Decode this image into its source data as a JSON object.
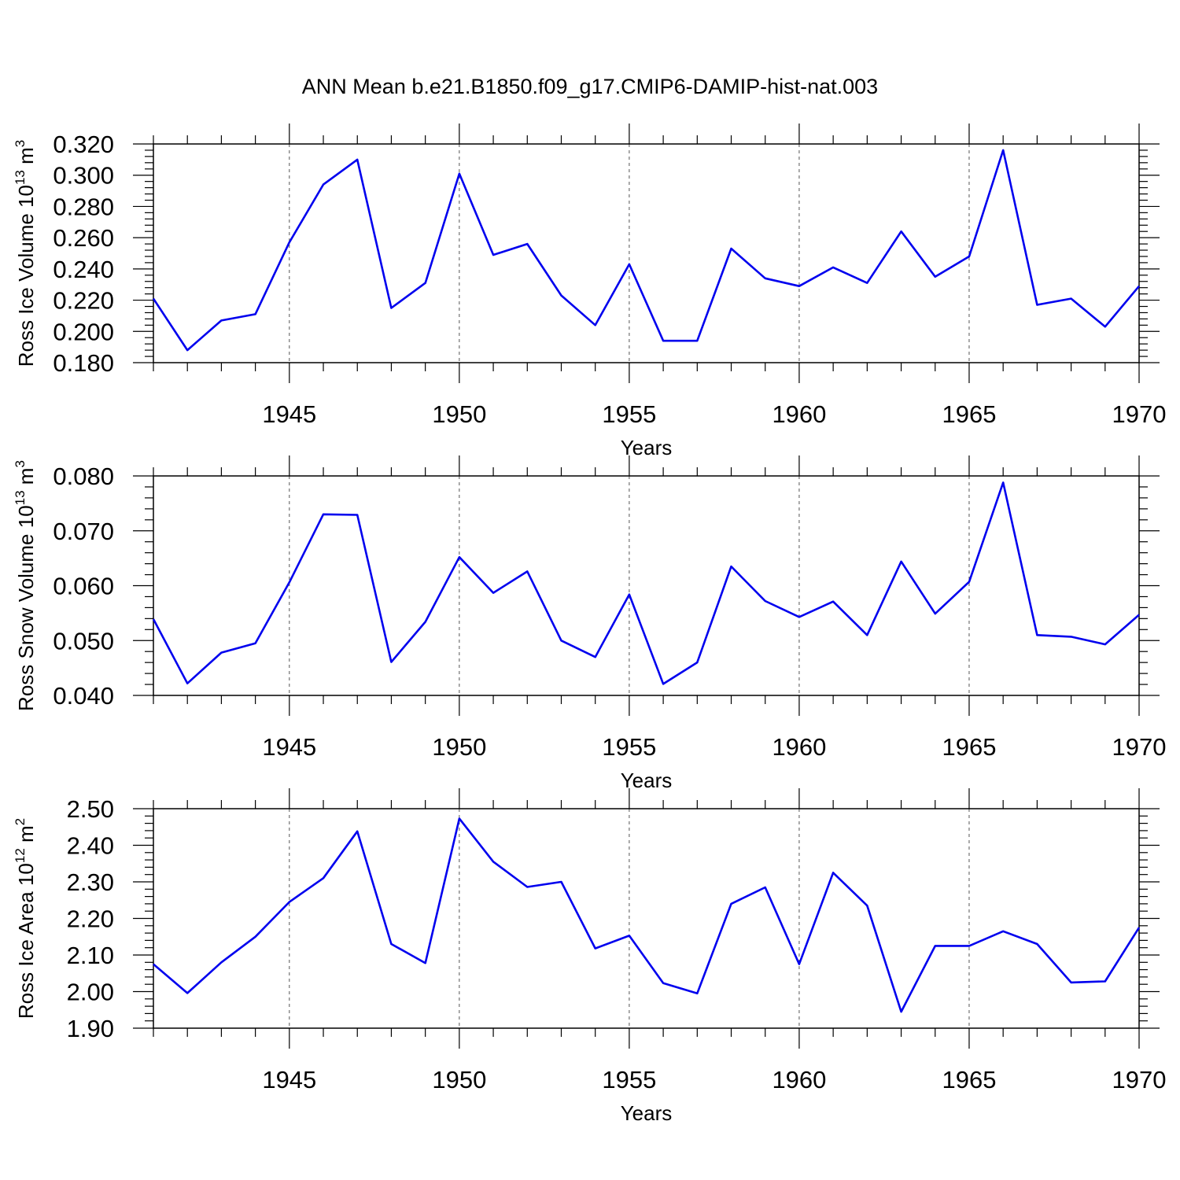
{
  "figure_title": "ANN Mean b.e21.B1850.f09_g17.CMIP6-DAMIP-hist-nat.003",
  "line_color": "#0000ee",
  "chart_data": [
    {
      "type": "line",
      "ylabel_main": "Ross Ice Volume 10",
      "ylabel_exp": "13",
      "ylabel_unit": " m",
      "ylabel_unit_exp": "3",
      "xlabel": "Years",
      "xlim": [
        1941,
        1970
      ],
      "ylim": [
        0.18,
        0.32
      ],
      "yticks": [
        0.18,
        0.2,
        0.22,
        0.24,
        0.26,
        0.28,
        0.3,
        0.32
      ],
      "ytick_labels": [
        "0.180",
        "0.200",
        "0.220",
        "0.240",
        "0.260",
        "0.280",
        "0.300",
        "0.320"
      ],
      "xticks": [
        1945,
        1950,
        1955,
        1960,
        1965,
        1970
      ],
      "xtick_labels": [
        "1945",
        "1950",
        "1955",
        "1960",
        "1965",
        "1970"
      ],
      "x": [
        1941,
        1942,
        1943,
        1944,
        1945,
        1946,
        1947,
        1948,
        1949,
        1950,
        1951,
        1952,
        1953,
        1954,
        1955,
        1956,
        1957,
        1958,
        1959,
        1960,
        1961,
        1962,
        1963,
        1964,
        1965,
        1966,
        1967,
        1968,
        1969,
        1970
      ],
      "y": [
        0.221,
        0.188,
        0.207,
        0.211,
        0.257,
        0.294,
        0.31,
        0.215,
        0.231,
        0.301,
        0.249,
        0.256,
        0.223,
        0.204,
        0.243,
        0.194,
        0.194,
        0.253,
        0.234,
        0.229,
        0.241,
        0.231,
        0.264,
        0.235,
        0.248,
        0.316,
        0.217,
        0.221,
        0.203,
        0.229
      ]
    },
    {
      "type": "line",
      "ylabel_main": "Ross Snow Volume 10",
      "ylabel_exp": "13",
      "ylabel_unit": " m",
      "ylabel_unit_exp": "3",
      "xlabel": "Years",
      "xlim": [
        1941,
        1970
      ],
      "ylim": [
        0.04,
        0.08
      ],
      "yticks": [
        0.04,
        0.05,
        0.06,
        0.07,
        0.08
      ],
      "ytick_labels": [
        "0.040",
        "0.050",
        "0.060",
        "0.070",
        "0.080"
      ],
      "xticks": [
        1945,
        1950,
        1955,
        1960,
        1965,
        1970
      ],
      "xtick_labels": [
        "1945",
        "1950",
        "1955",
        "1960",
        "1965",
        "1970"
      ],
      "x": [
        1941,
        1942,
        1943,
        1944,
        1945,
        1946,
        1947,
        1948,
        1949,
        1950,
        1951,
        1952,
        1953,
        1954,
        1955,
        1956,
        1957,
        1958,
        1959,
        1960,
        1961,
        1962,
        1963,
        1964,
        1965,
        1966,
        1967,
        1968,
        1969,
        1970
      ],
      "y": [
        0.0539,
        0.0422,
        0.0478,
        0.0495,
        0.0606,
        0.073,
        0.0729,
        0.0461,
        0.0534,
        0.0652,
        0.0587,
        0.0626,
        0.05,
        0.047,
        0.0584,
        0.0421,
        0.046,
        0.0635,
        0.0572,
        0.0543,
        0.0571,
        0.051,
        0.0644,
        0.0549,
        0.0607,
        0.0788,
        0.051,
        0.0507,
        0.0493,
        0.0547
      ]
    },
    {
      "type": "line",
      "ylabel_main": "Ross Ice Area 10",
      "ylabel_exp": "12",
      "ylabel_unit": " m",
      "ylabel_unit_exp": "2",
      "xlabel": "Years",
      "xlim": [
        1941,
        1970
      ],
      "ylim": [
        1.9,
        2.5
      ],
      "yticks": [
        1.9,
        2.0,
        2.1,
        2.2,
        2.3,
        2.4,
        2.5
      ],
      "ytick_labels": [
        "1.90",
        "2.00",
        "2.10",
        "2.20",
        "2.30",
        "2.40",
        "2.50"
      ],
      "xticks": [
        1945,
        1950,
        1955,
        1960,
        1965,
        1970
      ],
      "xtick_labels": [
        "1945",
        "1950",
        "1955",
        "1960",
        "1965",
        "1970"
      ],
      "x": [
        1941,
        1942,
        1943,
        1944,
        1945,
        1946,
        1947,
        1948,
        1949,
        1950,
        1951,
        1952,
        1953,
        1954,
        1955,
        1956,
        1957,
        1958,
        1959,
        1960,
        1961,
        1962,
        1963,
        1964,
        1965,
        1966,
        1967,
        1968,
        1969,
        1970
      ],
      "y": [
        2.075,
        1.996,
        2.08,
        2.15,
        2.245,
        2.31,
        2.438,
        2.13,
        2.078,
        2.473,
        2.355,
        2.286,
        2.3,
        2.118,
        2.153,
        2.023,
        1.995,
        2.24,
        2.285,
        2.075,
        2.325,
        2.235,
        1.945,
        2.125,
        2.125,
        2.165,
        2.13,
        2.025,
        2.028,
        2.175
      ]
    }
  ]
}
